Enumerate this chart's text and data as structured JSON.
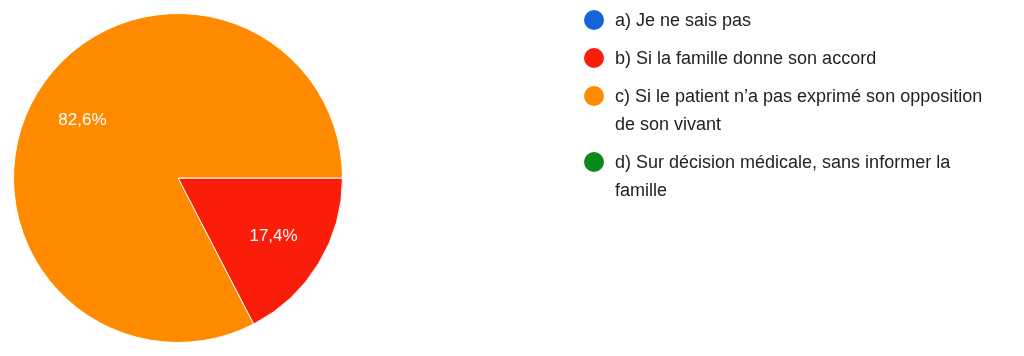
{
  "chart_data": {
    "type": "pie",
    "categories": [
      "a) Je ne sais pas",
      "b) Si la famille donne son accord",
      "c) Si le patient n’a pas exprimé son opposition de son vivant",
      "d) Sur décision médicale, sans informer la famille"
    ],
    "values": [
      0,
      17.4,
      82.6,
      0
    ],
    "colors": [
      "#1565d8",
      "#f91d0a",
      "#ff8a00",
      "#0b8a1c"
    ],
    "value_labels": [
      null,
      "17,4%",
      "82,6%",
      null
    ],
    "legend": "right"
  }
}
